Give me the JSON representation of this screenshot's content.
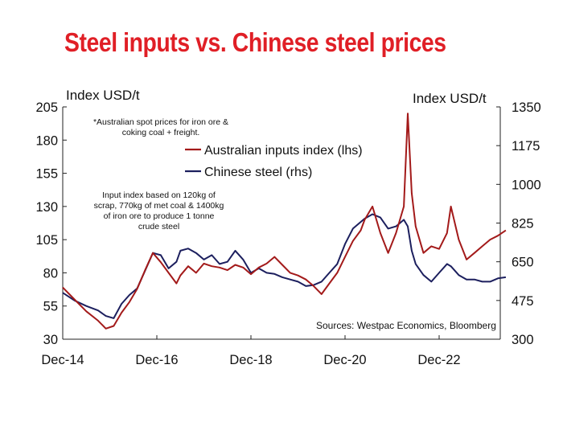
{
  "title": "Steel inputs vs. Chinese steel prices",
  "notes": {
    "spot": [
      "*Australian spot prices for iron ore &",
      "coking coal + freight."
    ],
    "index": [
      "Input index based on 120kg of",
      "scrap, 770kg of met coal & 1400kg",
      "of iron ore to produce 1 tonne",
      "crude steel"
    ]
  },
  "source": "Sources: Westpac Economics, Bloomberg",
  "colors": {
    "inputs": "#a31a1a",
    "steel": "#1c1f5e",
    "title": "#e01f26"
  },
  "chart_data": {
    "type": "line",
    "title": "Steel inputs vs. Chinese steel prices",
    "x_tick_labels": [
      "Dec-14",
      "Dec-16",
      "Dec-18",
      "Dec-20",
      "Dec-22"
    ],
    "x_tick_values": [
      "2014-12",
      "2016-12",
      "2018-12",
      "2020-12",
      "2022-12"
    ],
    "y_left": {
      "label": "Index USD/t",
      "min": 30,
      "max": 205,
      "ticks": [
        30,
        55,
        80,
        105,
        130,
        155,
        180,
        205
      ]
    },
    "y_right": {
      "label": "Index USD/t",
      "min": 300,
      "max": 1350,
      "ticks": [
        300,
        475,
        650,
        825,
        1000,
        1175,
        1350
      ]
    },
    "grid": false,
    "legend_position": "top-center",
    "series": [
      {
        "name": "Australian inputs index (lhs)",
        "axis": "left",
        "color": "#a31a1a",
        "x": [
          "2014-12",
          "2015-03",
          "2015-06",
          "2015-09",
          "2015-11",
          "2016-01",
          "2016-03",
          "2016-05",
          "2016-07",
          "2016-09",
          "2016-11",
          "2017-01",
          "2017-03",
          "2017-05",
          "2017-06",
          "2017-08",
          "2017-10",
          "2017-12",
          "2018-02",
          "2018-04",
          "2018-06",
          "2018-08",
          "2018-10",
          "2018-12",
          "2019-02",
          "2019-04",
          "2019-06",
          "2019-08",
          "2019-10",
          "2019-12",
          "2020-02",
          "2020-04",
          "2020-06",
          "2020-08",
          "2020-10",
          "2020-12",
          "2021-02",
          "2021-04",
          "2021-05",
          "2021-07",
          "2021-09",
          "2021-11",
          "2022-01",
          "2022-03",
          "2022-04",
          "2022-05",
          "2022-06",
          "2022-08",
          "2022-10",
          "2022-12",
          "2023-02",
          "2023-03",
          "2023-05",
          "2023-07",
          "2023-09",
          "2023-11",
          "2024-01",
          "2024-03",
          "2024-05"
        ],
        "values": [
          69,
          60,
          51,
          44,
          38,
          40,
          50,
          58,
          68,
          82,
          95,
          88,
          80,
          72,
          78,
          85,
          80,
          87,
          85,
          84,
          82,
          86,
          84,
          79,
          84,
          87,
          92,
          86,
          80,
          78,
          75,
          70,
          64,
          72,
          80,
          92,
          104,
          112,
          120,
          130,
          110,
          95,
          110,
          130,
          200,
          140,
          115,
          95,
          100,
          98,
          110,
          130,
          105,
          90,
          95,
          100,
          105,
          108,
          112
        ]
      },
      {
        "name": "Chinese steel  (rhs)",
        "axis": "right",
        "color": "#1c1f5e",
        "x": [
          "2014-12",
          "2015-03",
          "2015-06",
          "2015-09",
          "2015-11",
          "2016-01",
          "2016-03",
          "2016-05",
          "2016-07",
          "2016-09",
          "2016-11",
          "2017-01",
          "2017-03",
          "2017-05",
          "2017-06",
          "2017-08",
          "2017-10",
          "2017-12",
          "2018-02",
          "2018-04",
          "2018-06",
          "2018-08",
          "2018-10",
          "2018-12",
          "2019-02",
          "2019-04",
          "2019-06",
          "2019-08",
          "2019-10",
          "2019-12",
          "2020-02",
          "2020-04",
          "2020-06",
          "2020-08",
          "2020-10",
          "2020-12",
          "2021-02",
          "2021-04",
          "2021-05",
          "2021-07",
          "2021-09",
          "2021-11",
          "2022-01",
          "2022-03",
          "2022-04",
          "2022-05",
          "2022-06",
          "2022-08",
          "2022-10",
          "2022-12",
          "2023-02",
          "2023-03",
          "2023-05",
          "2023-07",
          "2023-09",
          "2023-11",
          "2024-01",
          "2024-03",
          "2024-05"
        ],
        "values": [
          510,
          475,
          450,
          430,
          405,
          395,
          460,
          500,
          530,
          610,
          690,
          680,
          620,
          650,
          700,
          710,
          690,
          660,
          680,
          640,
          650,
          700,
          660,
          600,
          620,
          600,
          595,
          580,
          570,
          560,
          540,
          545,
          560,
          600,
          640,
          730,
          800,
          830,
          845,
          865,
          850,
          800,
          810,
          840,
          810,
          700,
          640,
          590,
          560,
          600,
          640,
          630,
          590,
          570,
          570,
          560,
          560,
          575,
          580
        ]
      }
    ]
  }
}
